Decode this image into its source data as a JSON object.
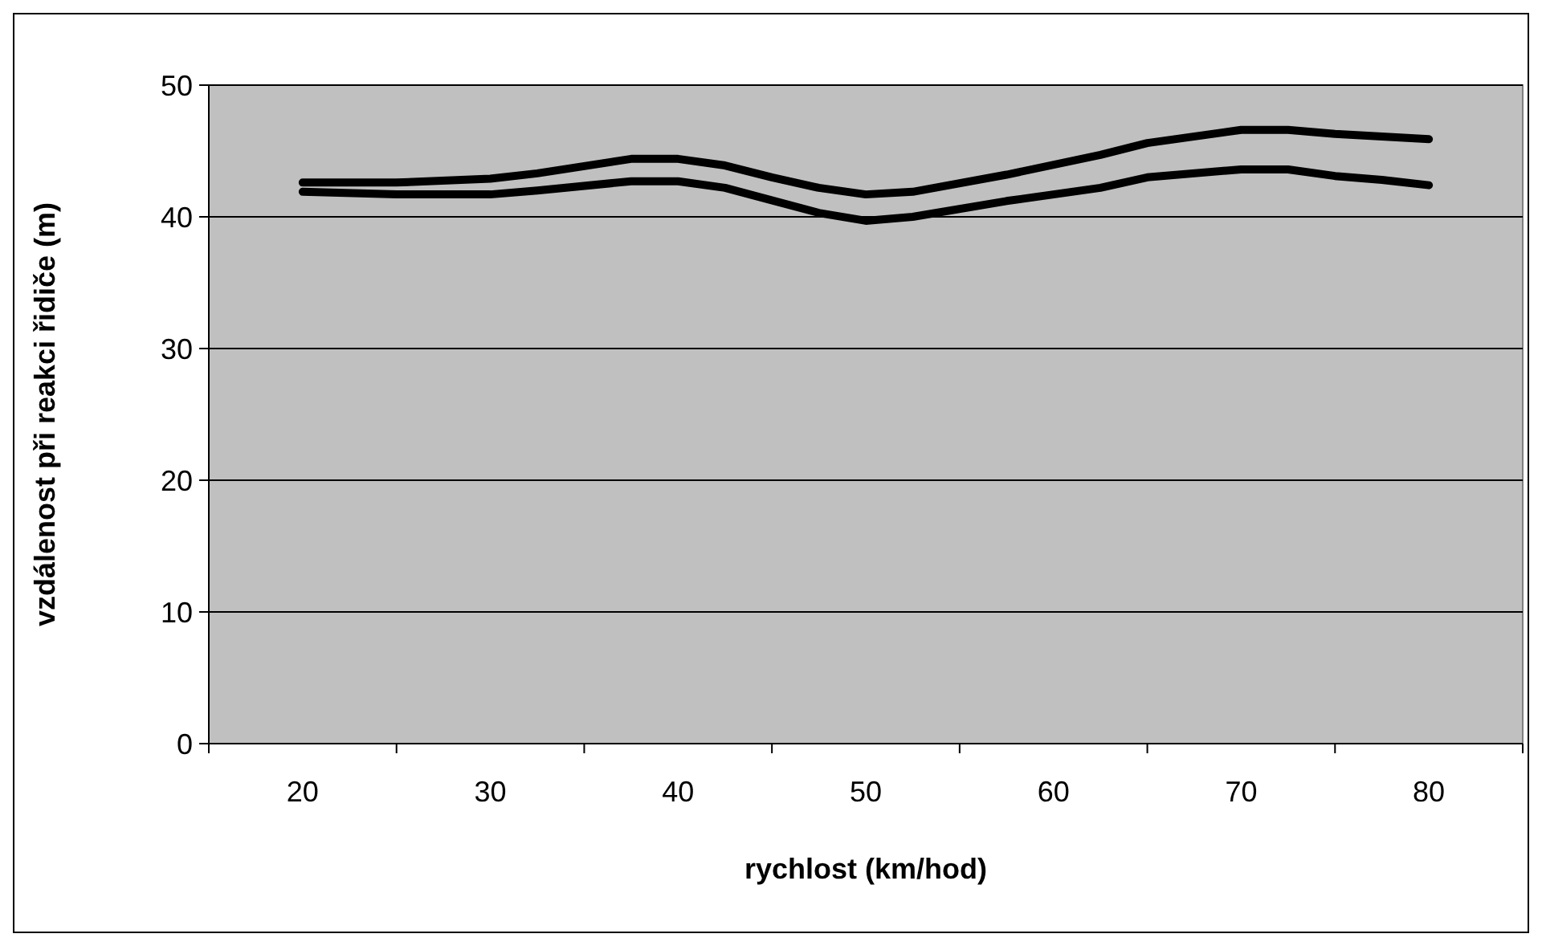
{
  "chart_data": {
    "type": "line",
    "xlabel": "rychlost (km/hod)",
    "ylabel": "vzdálenost při reakci řidiče (m)",
    "xlim": [
      15,
      85
    ],
    "xticks": [
      {
        "value": 15,
        "label": null
      },
      20,
      {
        "value": 25,
        "label": null
      },
      30,
      {
        "value": 35,
        "label": null
      },
      40,
      {
        "value": 45,
        "label": null
      },
      50,
      {
        "value": 55,
        "label": null
      },
      60,
      {
        "value": 65,
        "label": null
      },
      70,
      {
        "value": 75,
        "label": null
      },
      80,
      {
        "value": 85,
        "label": null
      }
    ],
    "ylim": [
      0,
      50
    ],
    "yticks": [
      0,
      10,
      20,
      30,
      40,
      50
    ],
    "grid": "y",
    "marker": "none",
    "line_style": "solid",
    "series": [
      {
        "color": "#000000",
        "x": [
          20,
          25,
          30,
          32.5,
          37.5,
          40,
          42.5,
          45,
          47.5,
          50,
          52.5,
          57.5,
          62.5,
          65,
          70,
          72.5,
          75,
          80
        ],
        "values": [
          42.6,
          42.6,
          42.9,
          43.3,
          44.4,
          44.4,
          43.9,
          43,
          42.2,
          41.7,
          41.9,
          43.2,
          44.7,
          45.6,
          46.6,
          46.6,
          46.3,
          45.9
        ]
      },
      {
        "color": "#000000",
        "x": [
          20,
          25,
          30,
          32.5,
          37.5,
          40,
          42.5,
          47.5,
          50,
          52.5,
          57.5,
          62.5,
          65,
          70,
          72.5,
          75,
          77.5,
          80
        ],
        "values": [
          41.9,
          41.7,
          41.7,
          42,
          42.7,
          42.7,
          42.2,
          40.3,
          39.7,
          40,
          41.2,
          42.2,
          43,
          43.6,
          43.6,
          43.1,
          42.8,
          42.4
        ]
      }
    ]
  }
}
